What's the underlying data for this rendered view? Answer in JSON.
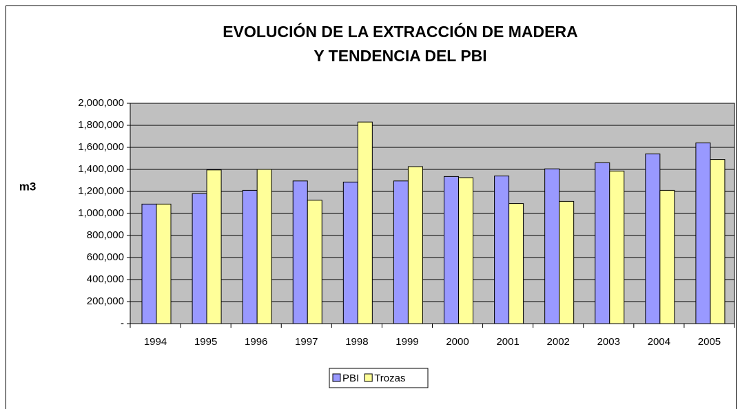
{
  "chart_data": {
    "type": "bar",
    "title": [
      "EVOLUCIÓN DE LA EXTRACCIÓN DE MADERA",
      "Y TENDENCIA DEL PBI"
    ],
    "y_label": "m3",
    "categories": [
      "1994",
      "1995",
      "1996",
      "1997",
      "1998",
      "1999",
      "2000",
      "2001",
      "2002",
      "2003",
      "2004",
      "2005"
    ],
    "series": [
      {
        "name": "PBI",
        "color": "#9999ff",
        "values": [
          1085000,
          1180000,
          1210000,
          1295000,
          1285000,
          1295000,
          1335000,
          1340000,
          1405000,
          1460000,
          1540000,
          1640000
        ]
      },
      {
        "name": "Trozas",
        "color": "#ffff99",
        "values": [
          1085000,
          1395000,
          1400000,
          1120000,
          1830000,
          1425000,
          1325000,
          1090000,
          1110000,
          1385000,
          1210000,
          1490000
        ]
      }
    ],
    "ylim": [
      0,
      2000000
    ],
    "yticks": [
      {
        "value": 0,
        "label": "-"
      },
      {
        "value": 200000,
        "label": "200,000"
      },
      {
        "value": 400000,
        "label": "400,000"
      },
      {
        "value": 600000,
        "label": "600,000"
      },
      {
        "value": 800000,
        "label": "800,000"
      },
      {
        "value": 1000000,
        "label": "1,000,000"
      },
      {
        "value": 1200000,
        "label": "1,200,000"
      },
      {
        "value": 1400000,
        "label": "1,400,000"
      },
      {
        "value": 1600000,
        "label": "1,600,000"
      },
      {
        "value": 1800000,
        "label": "1,800,000"
      },
      {
        "value": 2000000,
        "label": "2,000,000"
      }
    ],
    "grid": true,
    "legend": "bottom",
    "plot_background": "#c0c0c0"
  }
}
